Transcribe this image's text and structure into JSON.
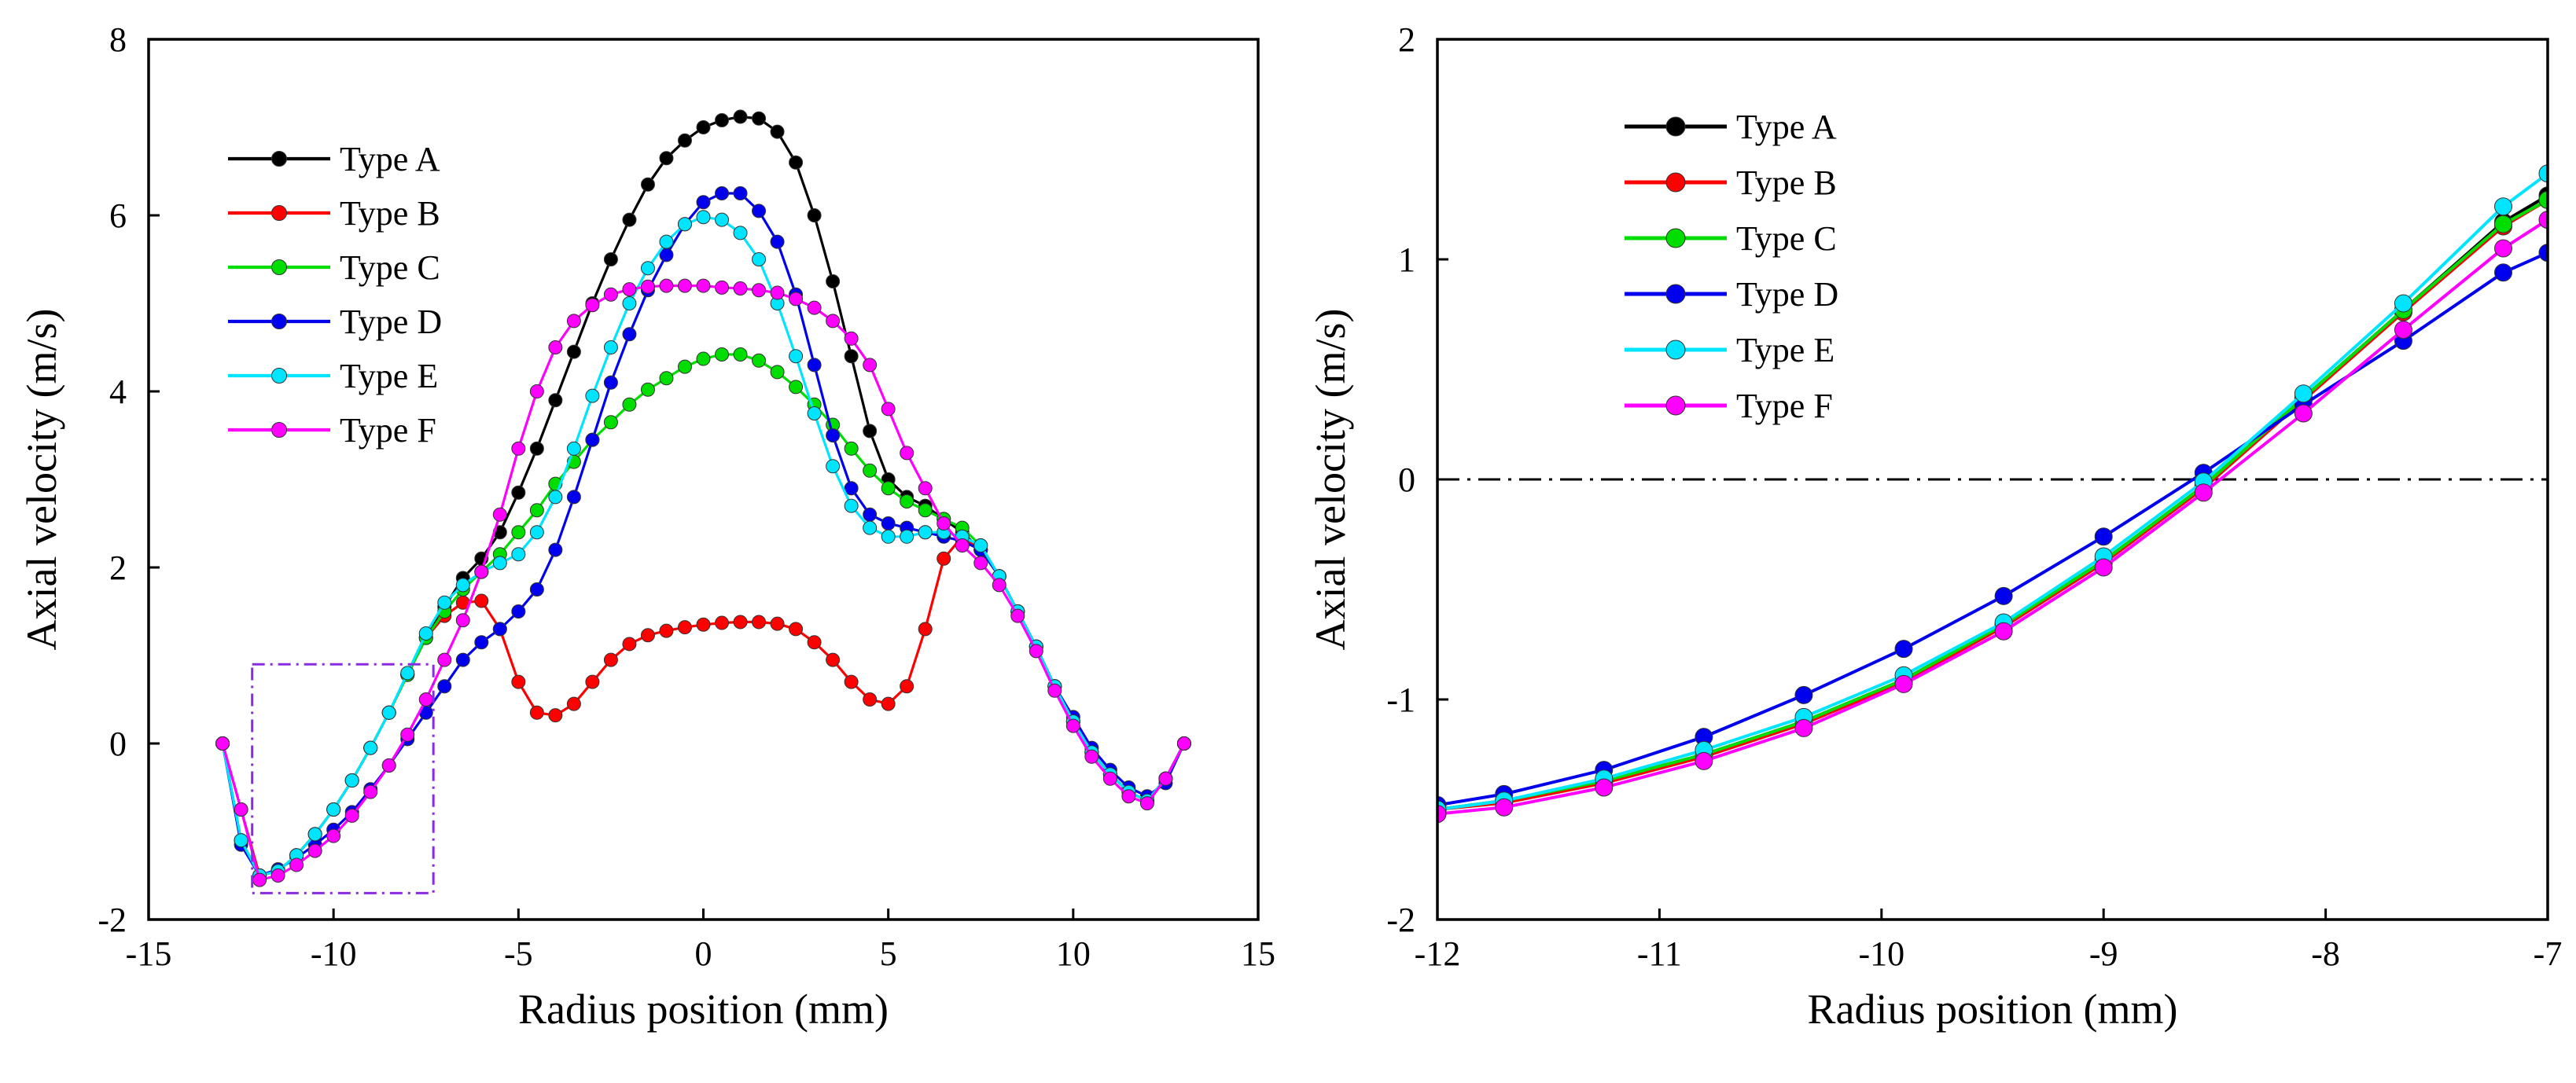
{
  "chart_data": [
    {
      "type": "line",
      "xlabel": "Radius position (mm)",
      "ylabel": "Axial velocity (m/s)",
      "xlim": [
        -15,
        15
      ],
      "ylim": [
        -2,
        8
      ],
      "xticks": [
        "-15",
        "-10",
        "-5",
        "0",
        "5",
        "10",
        "15"
      ],
      "yticks": [
        "-2",
        "0",
        "2",
        "4",
        "6",
        "8"
      ],
      "legend_position": "top-left",
      "inset_region": {
        "x": [
          -12.2,
          -7.3
        ],
        "y": [
          -1.7,
          0.9
        ]
      },
      "series": [
        {
          "name": "Type A",
          "color": "#000000",
          "x": [
            -13,
            -12.5,
            -12,
            -11.5,
            -11,
            -10.5,
            -10,
            -9.5,
            -9,
            -8.5,
            -8,
            -7.5,
            -7,
            -6.5,
            -6,
            -5.5,
            -5,
            -4.5,
            -4,
            -3.5,
            -3,
            -2.5,
            -2,
            -1.5,
            -1,
            -0.5,
            0,
            0.5,
            1,
            1.5,
            2,
            2.5,
            3,
            3.5,
            4,
            4.5,
            5,
            5.5,
            6,
            6.5,
            7,
            7.5,
            8,
            8.5,
            9,
            9.5,
            10,
            10.5,
            11,
            11.5,
            12,
            12.5,
            13
          ],
          "values": [
            0,
            -1.1,
            -1.5,
            -1.45,
            -1.27,
            -1.03,
            -0.75,
            -0.42,
            -0.05,
            0.35,
            0.78,
            1.2,
            1.55,
            1.88,
            2.1,
            2.4,
            2.85,
            3.35,
            3.9,
            4.45,
            5.0,
            5.5,
            5.95,
            6.35,
            6.65,
            6.85,
            7.0,
            7.08,
            7.12,
            7.1,
            6.95,
            6.6,
            6.0,
            5.25,
            4.4,
            3.55,
            3.0,
            2.8,
            2.7,
            2.55,
            2.4,
            2.2,
            1.9,
            1.5,
            1.1,
            0.65,
            0.25,
            -0.1,
            -0.35,
            -0.55,
            -0.65,
            -0.4,
            0
          ]
        },
        {
          "name": "Type B",
          "color": "#ff0000",
          "x": [
            -13,
            -12.5,
            -12,
            -11.5,
            -11,
            -10.5,
            -10,
            -9.5,
            -9,
            -8.5,
            -8,
            -7.5,
            -7,
            -6.5,
            -6,
            -5.5,
            -5,
            -4.5,
            -4,
            -3.5,
            -3,
            -2.5,
            -2,
            -1.5,
            -1,
            -0.5,
            0,
            0.5,
            1,
            1.5,
            2,
            2.5,
            3,
            3.5,
            4,
            4.5,
            5,
            5.5,
            6,
            6.5,
            7,
            7.5,
            8,
            8.5,
            9,
            9.5,
            10,
            10.5,
            11,
            11.5,
            12,
            12.5,
            13
          ],
          "values": [
            0,
            -0.75,
            -1.5,
            -1.45,
            -1.27,
            -1.03,
            -0.75,
            -0.42,
            -0.05,
            0.35,
            0.78,
            1.2,
            1.45,
            1.6,
            1.62,
            1.3,
            0.7,
            0.35,
            0.32,
            0.45,
            0.7,
            0.95,
            1.13,
            1.23,
            1.28,
            1.32,
            1.35,
            1.37,
            1.38,
            1.38,
            1.36,
            1.3,
            1.15,
            0.95,
            0.7,
            0.5,
            0.45,
            0.65,
            1.3,
            2.1,
            2.35,
            2.2,
            1.9,
            1.5,
            1.1,
            0.65,
            0.25,
            -0.1,
            -0.35,
            -0.55,
            -0.65,
            -0.4,
            0
          ]
        },
        {
          "name": "Type C",
          "color": "#00dd00",
          "x": [
            -13,
            -12.5,
            -12,
            -11.5,
            -11,
            -10.5,
            -10,
            -9.5,
            -9,
            -8.5,
            -8,
            -7.5,
            -7,
            -6.5,
            -6,
            -5.5,
            -5,
            -4.5,
            -4,
            -3.5,
            -3,
            -2.5,
            -2,
            -1.5,
            -1,
            -0.5,
            0,
            0.5,
            1,
            1.5,
            2,
            2.5,
            3,
            3.5,
            4,
            4.5,
            5,
            5.5,
            6,
            6.5,
            7,
            7.5,
            8,
            8.5,
            9,
            9.5,
            10,
            10.5,
            11,
            11.5,
            12,
            12.5,
            13
          ],
          "values": [
            0,
            -1.1,
            -1.5,
            -1.45,
            -1.27,
            -1.03,
            -0.75,
            -0.42,
            -0.05,
            0.35,
            0.78,
            1.2,
            1.5,
            1.75,
            1.95,
            2.15,
            2.4,
            2.65,
            2.95,
            3.2,
            3.45,
            3.65,
            3.85,
            4.02,
            4.15,
            4.28,
            4.37,
            4.42,
            4.42,
            4.35,
            4.22,
            4.05,
            3.85,
            3.62,
            3.35,
            3.1,
            2.9,
            2.75,
            2.65,
            2.55,
            2.45,
            2.25,
            1.9,
            1.5,
            1.1,
            0.65,
            0.25,
            -0.1,
            -0.35,
            -0.55,
            -0.65,
            -0.4,
            0
          ]
        },
        {
          "name": "Type D",
          "color": "#0000ee",
          "x": [
            -13,
            -12.5,
            -12,
            -11.5,
            -11,
            -10.5,
            -10,
            -9.5,
            -9,
            -8.5,
            -8,
            -7.5,
            -7,
            -6.5,
            -6,
            -5.5,
            -5,
            -4.5,
            -4,
            -3.5,
            -3,
            -2.5,
            -2,
            -1.5,
            -1,
            -0.5,
            0,
            0.5,
            1,
            1.5,
            2,
            2.5,
            3,
            3.5,
            4,
            4.5,
            5,
            5.5,
            6,
            6.5,
            7,
            7.5,
            8,
            8.5,
            9,
            9.5,
            10,
            10.5,
            11,
            11.5,
            12,
            12.5,
            13
          ],
          "values": [
            0,
            -1.15,
            -1.5,
            -1.43,
            -1.3,
            -1.15,
            -0.98,
            -0.78,
            -0.52,
            -0.25,
            0.05,
            0.35,
            0.65,
            0.95,
            1.15,
            1.3,
            1.5,
            1.75,
            2.2,
            2.8,
            3.45,
            4.1,
            4.65,
            5.15,
            5.55,
            5.9,
            6.15,
            6.25,
            6.25,
            6.05,
            5.7,
            5.1,
            4.3,
            3.5,
            2.9,
            2.6,
            2.5,
            2.45,
            2.4,
            2.35,
            2.3,
            2.2,
            1.9,
            1.5,
            1.1,
            0.65,
            0.3,
            -0.05,
            -0.3,
            -0.5,
            -0.6,
            -0.45,
            0
          ]
        },
        {
          "name": "Type E",
          "color": "#00e5ff",
          "x": [
            -13,
            -12.5,
            -12,
            -11.5,
            -11,
            -10.5,
            -10,
            -9.5,
            -9,
            -8.5,
            -8,
            -7.5,
            -7,
            -6.5,
            -6,
            -5.5,
            -5,
            -4.5,
            -4,
            -3.5,
            -3,
            -2.5,
            -2,
            -1.5,
            -1,
            -0.5,
            0,
            0.5,
            1,
            1.5,
            2,
            2.5,
            3,
            3.5,
            4,
            4.5,
            5,
            5.5,
            6,
            6.5,
            7,
            7.5,
            8,
            8.5,
            9,
            9.5,
            10,
            10.5,
            11,
            11.5,
            12,
            12.5,
            13
          ],
          "values": [
            0,
            -1.1,
            -1.5,
            -1.45,
            -1.27,
            -1.03,
            -0.75,
            -0.42,
            -0.05,
            0.35,
            0.8,
            1.25,
            1.6,
            1.8,
            1.95,
            2.05,
            2.15,
            2.4,
            2.8,
            3.35,
            3.95,
            4.5,
            5.0,
            5.4,
            5.7,
            5.9,
            5.98,
            5.95,
            5.8,
            5.5,
            5.0,
            4.4,
            3.75,
            3.15,
            2.7,
            2.45,
            2.35,
            2.35,
            2.4,
            2.4,
            2.35,
            2.25,
            1.9,
            1.5,
            1.1,
            0.65,
            0.25,
            -0.1,
            -0.35,
            -0.55,
            -0.65,
            -0.4,
            0
          ]
        },
        {
          "name": "Type F",
          "color": "#ff00ff",
          "x": [
            -13,
            -12.5,
            -12,
            -11.5,
            -11,
            -10.5,
            -10,
            -9.5,
            -9,
            -8.5,
            -8,
            -7.5,
            -7,
            -6.5,
            -6,
            -5.5,
            -5,
            -4.5,
            -4,
            -3.5,
            -3,
            -2.5,
            -2,
            -1.5,
            -1,
            -0.5,
            0,
            0.5,
            1,
            1.5,
            2,
            2.5,
            3,
            3.5,
            4,
            4.5,
            5,
            5.5,
            6,
            6.5,
            7,
            7.5,
            8,
            8.5,
            9,
            9.5,
            10,
            10.5,
            11,
            11.5,
            12,
            12.5,
            13
          ],
          "values": [
            0,
            -0.75,
            -1.55,
            -1.5,
            -1.38,
            -1.22,
            -1.05,
            -0.82,
            -0.55,
            -0.25,
            0.1,
            0.5,
            0.95,
            1.4,
            1.95,
            2.6,
            3.35,
            4.0,
            4.5,
            4.8,
            4.98,
            5.1,
            5.16,
            5.19,
            5.2,
            5.2,
            5.2,
            5.18,
            5.17,
            5.15,
            5.12,
            5.05,
            4.95,
            4.8,
            4.6,
            4.3,
            3.8,
            3.3,
            2.9,
            2.5,
            2.25,
            2.05,
            1.8,
            1.45,
            1.05,
            0.6,
            0.2,
            -0.15,
            -0.4,
            -0.6,
            -0.68,
            -0.4,
            0
          ]
        }
      ]
    },
    {
      "type": "line",
      "xlabel": "Radius position (mm)",
      "ylabel": "Axial velocity (m/s)",
      "xlim": [
        -12,
        -7
      ],
      "ylim": [
        -2,
        2
      ],
      "xticks": [
        "-12",
        "-11",
        "-10",
        "-9",
        "-8",
        "-7"
      ],
      "yticks": [
        "-2",
        "-1",
        "0",
        "1",
        "2"
      ],
      "reference_line": {
        "y": 0,
        "style": "dash-dot"
      },
      "legend_position": "top-left",
      "series": [
        {
          "name": "Type A",
          "color": "#000000",
          "x": [
            -12,
            -11.7,
            -11.25,
            -10.8,
            -10.35,
            -9.9,
            -9.45,
            -9.0,
            -8.55,
            -8.1,
            -7.65,
            -7.2,
            -7.0
          ],
          "values": [
            -1.5,
            -1.46,
            -1.37,
            -1.25,
            -1.1,
            -0.91,
            -0.66,
            -0.37,
            -0.03,
            0.37,
            0.77,
            1.17,
            1.29
          ]
        },
        {
          "name": "Type B",
          "color": "#ff0000",
          "x": [
            -12,
            -11.7,
            -11.25,
            -10.8,
            -10.35,
            -9.9,
            -9.45,
            -9.0,
            -8.55,
            -8.1,
            -7.65,
            -7.2,
            -7.0
          ],
          "values": [
            -1.5,
            -1.47,
            -1.38,
            -1.26,
            -1.11,
            -0.92,
            -0.67,
            -0.38,
            -0.04,
            0.36,
            0.76,
            1.15,
            1.27
          ]
        },
        {
          "name": "Type C",
          "color": "#00dd00",
          "x": [
            -12,
            -11.7,
            -11.25,
            -10.8,
            -10.35,
            -9.9,
            -9.45,
            -9.0,
            -8.55,
            -8.1,
            -7.65,
            -7.2,
            -7.0
          ],
          "values": [
            -1.5,
            -1.46,
            -1.37,
            -1.25,
            -1.1,
            -0.91,
            -0.66,
            -0.37,
            -0.03,
            0.37,
            0.77,
            1.16,
            1.27
          ]
        },
        {
          "name": "Type D",
          "color": "#0000ee",
          "x": [
            -12,
            -11.7,
            -11.25,
            -10.8,
            -10.35,
            -9.9,
            -9.45,
            -9.0,
            -8.55,
            -8.1,
            -7.65,
            -7.2,
            -7.0
          ],
          "values": [
            -1.48,
            -1.43,
            -1.32,
            -1.17,
            -0.98,
            -0.77,
            -0.53,
            -0.26,
            0.03,
            0.34,
            0.63,
            0.94,
            1.03
          ]
        },
        {
          "name": "Type E",
          "color": "#00e5ff",
          "x": [
            -12,
            -11.7,
            -11.25,
            -10.8,
            -10.35,
            -9.9,
            -9.45,
            -9.0,
            -8.55,
            -8.1,
            -7.65,
            -7.2,
            -7.0
          ],
          "values": [
            -1.5,
            -1.46,
            -1.36,
            -1.23,
            -1.08,
            -0.89,
            -0.65,
            -0.35,
            -0.01,
            0.39,
            0.8,
            1.24,
            1.39
          ]
        },
        {
          "name": "Type F",
          "color": "#ff00ff",
          "x": [
            -12,
            -11.7,
            -11.25,
            -10.8,
            -10.35,
            -9.9,
            -9.45,
            -9.0,
            -8.55,
            -8.1,
            -7.65,
            -7.2,
            -7.0
          ],
          "values": [
            -1.52,
            -1.49,
            -1.4,
            -1.28,
            -1.13,
            -0.93,
            -0.69,
            -0.4,
            -0.06,
            0.3,
            0.68,
            1.05,
            1.18
          ]
        }
      ]
    }
  ]
}
